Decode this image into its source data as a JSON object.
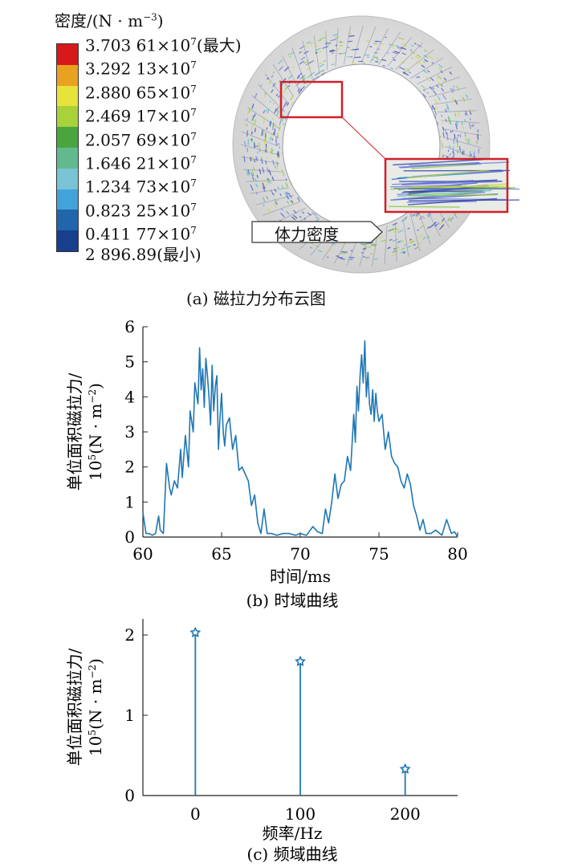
{
  "legend": {
    "title_main": "密度/(N · m",
    "title_exp": "−3",
    "title_close": ")",
    "colors": [
      "#d7191c",
      "#e8a21f",
      "#e8e23c",
      "#a9d23a",
      "#4aa53f",
      "#63b98f",
      "#79c3d4",
      "#41a3d9",
      "#2166ac",
      "#173f8c"
    ],
    "labels": [
      {
        "base": "3.703 61×10",
        "exp": "7",
        "suffix": "(最大)"
      },
      {
        "base": "3.292 13×10",
        "exp": "7",
        "suffix": ""
      },
      {
        "base": "2.880 65×10",
        "exp": "7",
        "suffix": ""
      },
      {
        "base": "2.469 17×10",
        "exp": "7",
        "suffix": ""
      },
      {
        "base": "2.057 69×10",
        "exp": "7",
        "suffix": ""
      },
      {
        "base": "1.646 21×10",
        "exp": "7",
        "suffix": ""
      },
      {
        "base": "1.234 73×10",
        "exp": "7",
        "suffix": ""
      },
      {
        "base": "0.823 25×10",
        "exp": "7",
        "suffix": ""
      },
      {
        "base": "0.411 77×10",
        "exp": "7",
        "suffix": ""
      },
      {
        "base": "2 896.89",
        "exp": "",
        "suffix": "(最小)"
      }
    ]
  },
  "panel_a": {
    "callout_label": "体力密度",
    "caption": "(a)  磁拉力分布云图"
  },
  "chart_data": [
    {
      "type": "line",
      "ylabel_line1": "单位面积磁拉力/",
      "ylabel_line2_base": "10",
      "ylabel_line2_exp": "5",
      "ylabel_line2_mid": "(N · m",
      "ylabel_line2_exp2": "−2",
      "ylabel_line2_close": ")",
      "xlabel": "时间/ms",
      "caption": "(b)  时域曲线",
      "xlim": [
        60,
        80
      ],
      "ylim": [
        0,
        6
      ],
      "xticks": [
        60,
        65,
        70,
        75,
        80
      ],
      "yticks": [
        0,
        1,
        2,
        3,
        4,
        5,
        6
      ],
      "series_color": "#1f77b4",
      "x": [
        60.0,
        60.2,
        60.4,
        60.6,
        60.8,
        61.0,
        61.1,
        61.3,
        61.5,
        61.7,
        61.8,
        62.0,
        62.2,
        62.4,
        62.5,
        62.7,
        62.9,
        63.0,
        63.2,
        63.3,
        63.5,
        63.6,
        63.7,
        63.8,
        63.9,
        64.0,
        64.1,
        64.2,
        64.3,
        64.4,
        64.5,
        64.6,
        64.7,
        64.8,
        64.9,
        65.0,
        65.1,
        65.2,
        65.3,
        65.5,
        65.7,
        65.9,
        66.1,
        66.3,
        66.5,
        66.7,
        66.9,
        67.1,
        67.3,
        67.5,
        67.7,
        67.9,
        68.2,
        68.5,
        68.9,
        69.3,
        69.7,
        70.0,
        70.4,
        70.8,
        71.1,
        71.4,
        71.6,
        71.8,
        72.0,
        72.2,
        72.4,
        72.6,
        72.8,
        73.0,
        73.2,
        73.4,
        73.5,
        73.6,
        73.7,
        73.8,
        73.9,
        74.0,
        74.1,
        74.2,
        74.3,
        74.4,
        74.5,
        74.6,
        74.7,
        74.8,
        74.9,
        75.0,
        75.2,
        75.4,
        75.6,
        75.8,
        76.0,
        76.2,
        76.4,
        76.6,
        76.8,
        77.0,
        77.2,
        77.4,
        77.6,
        77.8,
        78.0,
        78.3,
        78.6,
        79.0,
        79.3,
        79.6,
        79.8,
        80.0
      ],
      "y": [
        0.7,
        0.1,
        0.1,
        0.05,
        0.1,
        0.6,
        0.2,
        0.1,
        2.1,
        1.4,
        1.2,
        1.6,
        1.4,
        2.5,
        1.7,
        2.9,
        2.0,
        3.6,
        3.0,
        4.4,
        3.8,
        5.4,
        4.2,
        4.8,
        3.7,
        5.1,
        4.6,
        4.0,
        3.2,
        4.9,
        3.6,
        4.3,
        4.6,
        2.5,
        3.4,
        4.1,
        3.0,
        2.6,
        3.2,
        3.4,
        2.5,
        2.9,
        1.9,
        2.0,
        1.8,
        1.6,
        0.9,
        1.2,
        0.4,
        0.1,
        0.8,
        0.1,
        0.1,
        0.05,
        0.1,
        0.1,
        0.05,
        0.1,
        0.05,
        0.3,
        0.15,
        0.1,
        0.8,
        0.4,
        1.0,
        1.8,
        1.1,
        1.5,
        1.6,
        2.3,
        1.9,
        3.5,
        2.7,
        4.3,
        3.6,
        4.6,
        5.2,
        4.4,
        5.6,
        4.0,
        4.7,
        3.8,
        3.5,
        4.2,
        3.3,
        4.1,
        3.6,
        3.3,
        3.5,
        2.5,
        3.0,
        2.3,
        2.1,
        2.0,
        1.6,
        1.4,
        1.8,
        1.5,
        0.9,
        0.6,
        0.2,
        0.5,
        0.1,
        0.1,
        0.2,
        0.05,
        0.5,
        0.1,
        0.15,
        0.0
      ]
    },
    {
      "type": "bar",
      "ylabel_line1": "单位面积磁拉力/",
      "ylabel_line2_base": "10",
      "ylabel_line2_exp": "5",
      "ylabel_line2_mid": "(N · m",
      "ylabel_line2_exp2": "−2",
      "ylabel_line2_close": ")",
      "xlabel": "频率/Hz",
      "caption": "(c)  频域曲线",
      "xlim": [
        -50,
        250
      ],
      "ylim": [
        0,
        2.2
      ],
      "xticks": [
        0,
        100,
        200
      ],
      "yticks": [
        0,
        1,
        2
      ],
      "series_color": "#1f77b4",
      "categories": [
        0,
        100,
        200
      ],
      "values": [
        2.03,
        1.67,
        0.33
      ]
    }
  ]
}
